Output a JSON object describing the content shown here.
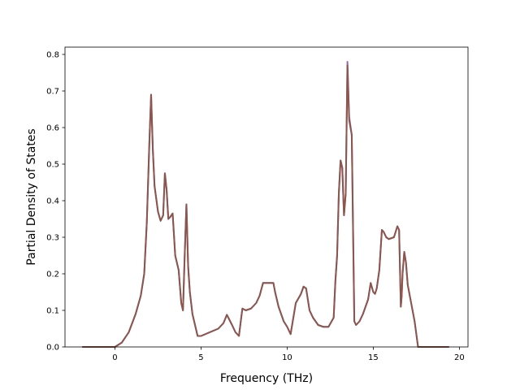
{
  "chart_data": {
    "type": "line",
    "title": "",
    "xlabel": "Frequency (THz)",
    "ylabel": "Partial Density of States",
    "xlim": [
      -2.9,
      20.5
    ],
    "ylim": [
      0.0,
      0.82
    ],
    "xticks": [
      0,
      5,
      10,
      15,
      20
    ],
    "yticks": [
      0.0,
      0.1,
      0.2,
      0.3,
      0.4,
      0.5,
      0.6,
      0.7,
      0.8
    ],
    "ytick_labels": [
      "0.0",
      "0.1",
      "0.2",
      "0.3",
      "0.4",
      "0.5",
      "0.6",
      "0.7",
      "0.8"
    ],
    "grid": false,
    "legend": "none",
    "series": [
      {
        "color": "#9467bd",
        "x": [
          -1.9,
          0.0,
          0.4,
          0.8,
          1.2,
          1.5,
          1.7,
          1.85,
          2.0,
          2.1,
          2.2,
          2.3,
          2.5,
          2.65,
          2.8,
          2.9,
          3.0,
          3.1,
          3.2,
          3.35,
          3.5,
          3.7,
          3.85,
          3.95,
          4.05,
          4.15,
          4.25,
          4.35,
          4.5,
          4.8,
          5.0,
          6.0,
          6.3,
          6.5,
          6.8,
          7.0,
          7.2,
          7.4,
          7.6,
          7.9,
          8.2,
          8.4,
          8.6,
          8.8,
          9.0,
          9.2,
          9.3,
          9.5,
          9.8,
          10.0,
          10.2,
          10.5,
          10.8,
          10.95,
          11.1,
          11.3,
          11.5,
          11.8,
          12.1,
          12.4,
          12.7,
          12.8,
          12.9,
          13.0,
          13.1,
          13.2,
          13.3,
          13.4,
          13.5,
          13.6,
          13.75,
          13.9,
          14.0,
          14.2,
          14.4,
          14.7,
          14.85,
          15.0,
          15.1,
          15.2,
          15.35,
          15.5,
          15.6,
          15.75,
          15.9,
          16.2,
          16.4,
          16.5,
          16.6,
          16.65,
          16.7,
          16.8,
          16.9,
          17.0,
          17.2,
          17.4,
          17.6,
          17.8,
          19.4
        ],
        "y": [
          0.0,
          0.0,
          0.012,
          0.04,
          0.09,
          0.14,
          0.2,
          0.34,
          0.56,
          0.69,
          0.54,
          0.44,
          0.37,
          0.345,
          0.36,
          0.475,
          0.43,
          0.35,
          0.355,
          0.365,
          0.25,
          0.21,
          0.12,
          0.1,
          0.25,
          0.39,
          0.22,
          0.15,
          0.09,
          0.03,
          0.03,
          0.05,
          0.065,
          0.088,
          0.06,
          0.04,
          0.03,
          0.105,
          0.1,
          0.105,
          0.12,
          0.14,
          0.175,
          0.175,
          0.175,
          0.175,
          0.15,
          0.11,
          0.07,
          0.055,
          0.035,
          0.12,
          0.145,
          0.165,
          0.16,
          0.1,
          0.08,
          0.06,
          0.055,
          0.055,
          0.08,
          0.18,
          0.25,
          0.42,
          0.51,
          0.49,
          0.36,
          0.42,
          0.78,
          0.63,
          0.58,
          0.07,
          0.06,
          0.07,
          0.09,
          0.13,
          0.175,
          0.15,
          0.145,
          0.16,
          0.21,
          0.32,
          0.315,
          0.3,
          0.295,
          0.3,
          0.33,
          0.32,
          0.11,
          0.14,
          0.2,
          0.26,
          0.23,
          0.17,
          0.12,
          0.07,
          0.0,
          0.0,
          0.0
        ]
      },
      {
        "color": "#8c564b",
        "x": [
          -1.9,
          0.0,
          0.4,
          0.8,
          1.2,
          1.5,
          1.7,
          1.85,
          2.0,
          2.1,
          2.2,
          2.3,
          2.5,
          2.65,
          2.8,
          2.9,
          3.0,
          3.1,
          3.2,
          3.35,
          3.5,
          3.7,
          3.85,
          3.95,
          4.05,
          4.15,
          4.25,
          4.35,
          4.5,
          4.8,
          5.0,
          6.0,
          6.3,
          6.5,
          6.8,
          7.0,
          7.2,
          7.4,
          7.6,
          7.9,
          8.2,
          8.4,
          8.6,
          8.8,
          9.0,
          9.2,
          9.3,
          9.5,
          9.8,
          10.0,
          10.2,
          10.5,
          10.8,
          10.95,
          11.1,
          11.3,
          11.5,
          11.8,
          12.1,
          12.4,
          12.7,
          12.8,
          12.9,
          13.0,
          13.1,
          13.2,
          13.3,
          13.4,
          13.5,
          13.6,
          13.75,
          13.9,
          14.0,
          14.2,
          14.4,
          14.7,
          14.85,
          15.0,
          15.1,
          15.2,
          15.35,
          15.5,
          15.6,
          15.75,
          15.9,
          16.2,
          16.4,
          16.5,
          16.6,
          16.65,
          16.7,
          16.8,
          16.9,
          17.0,
          17.2,
          17.4,
          17.6,
          17.8,
          19.4
        ],
        "y": [
          0.0,
          0.0,
          0.012,
          0.04,
          0.09,
          0.14,
          0.2,
          0.34,
          0.56,
          0.69,
          0.54,
          0.44,
          0.37,
          0.345,
          0.36,
          0.475,
          0.43,
          0.35,
          0.355,
          0.365,
          0.25,
          0.21,
          0.12,
          0.1,
          0.25,
          0.39,
          0.22,
          0.15,
          0.09,
          0.03,
          0.03,
          0.05,
          0.065,
          0.088,
          0.06,
          0.04,
          0.03,
          0.105,
          0.1,
          0.105,
          0.12,
          0.14,
          0.175,
          0.175,
          0.175,
          0.175,
          0.15,
          0.11,
          0.07,
          0.055,
          0.035,
          0.12,
          0.145,
          0.165,
          0.16,
          0.1,
          0.08,
          0.06,
          0.055,
          0.055,
          0.08,
          0.18,
          0.25,
          0.42,
          0.51,
          0.49,
          0.36,
          0.42,
          0.77,
          0.62,
          0.58,
          0.07,
          0.06,
          0.07,
          0.09,
          0.13,
          0.175,
          0.15,
          0.145,
          0.16,
          0.21,
          0.32,
          0.315,
          0.3,
          0.295,
          0.3,
          0.33,
          0.32,
          0.11,
          0.14,
          0.2,
          0.26,
          0.23,
          0.17,
          0.12,
          0.07,
          0.0,
          0.0,
          0.0
        ]
      }
    ]
  }
}
